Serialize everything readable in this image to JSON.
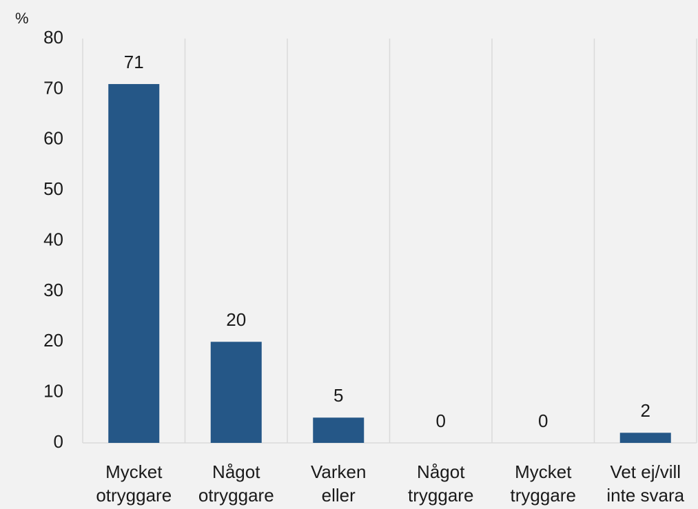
{
  "chart_data": {
    "type": "bar",
    "y_label": "%",
    "categories": [
      [
        "Mycket",
        "otryggare"
      ],
      [
        "Något",
        "otryggare"
      ],
      [
        "Varken",
        "eller"
      ],
      [
        "Något",
        "tryggare"
      ],
      [
        "Mycket",
        "tryggare"
      ],
      [
        "Vet ej/vill",
        "inte svara"
      ]
    ],
    "values": [
      71,
      20,
      5,
      0,
      0,
      2
    ],
    "color": "#255787",
    "ylim": [
      0,
      80
    ],
    "yticks": [
      0,
      10,
      20,
      30,
      40,
      50,
      60,
      70,
      80
    ],
    "grid": "vertical-category"
  }
}
